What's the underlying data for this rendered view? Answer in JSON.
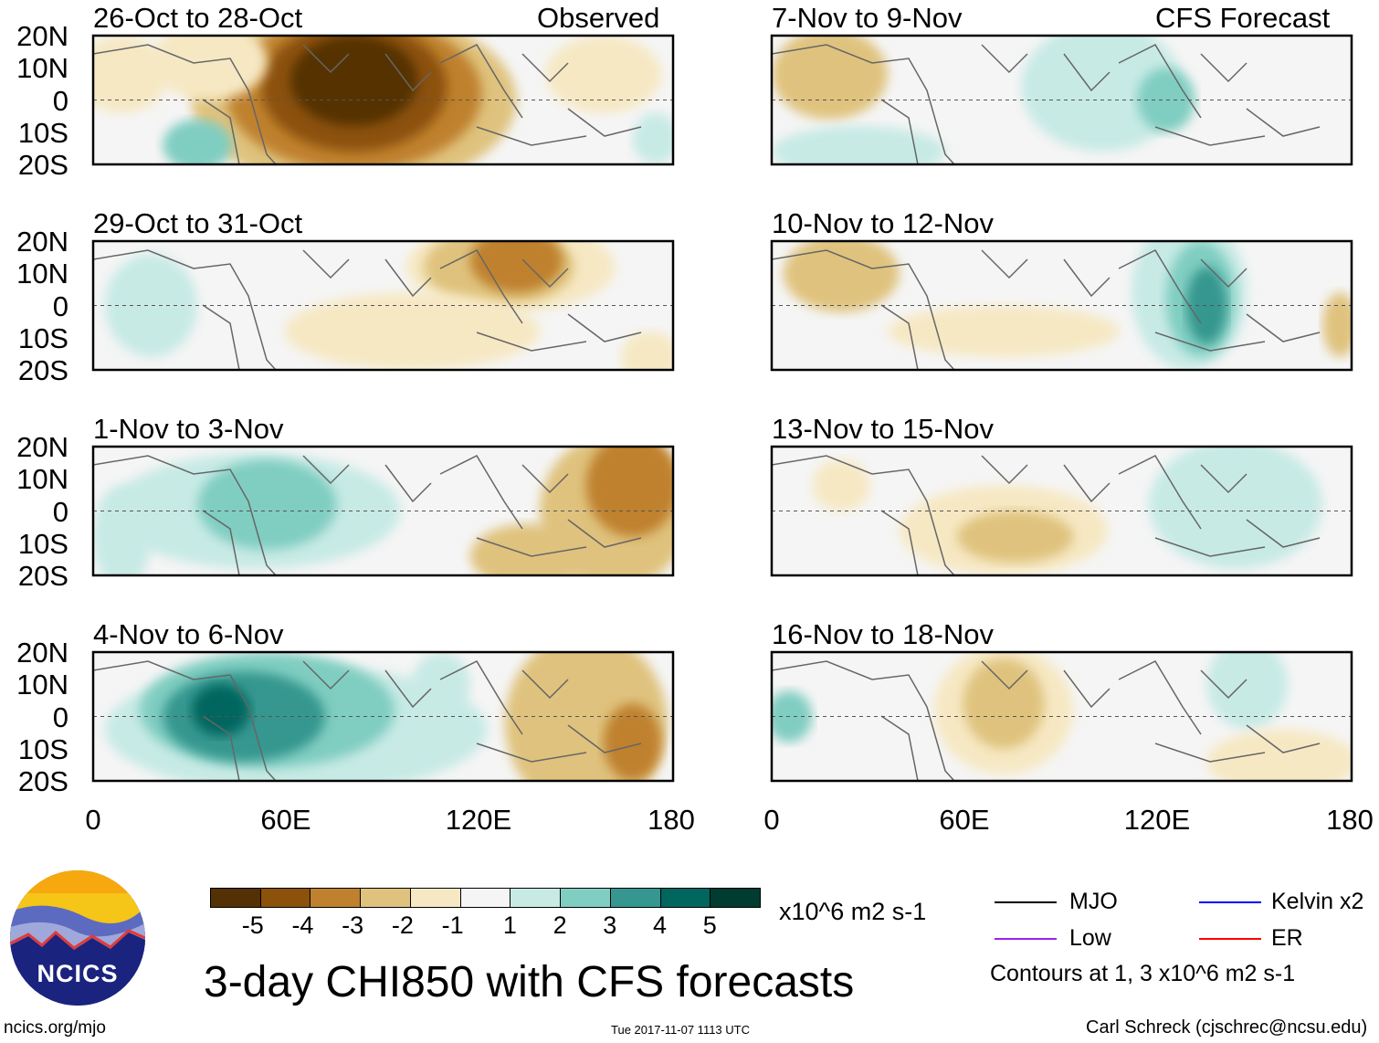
{
  "figure": {
    "title": "3-day CHI850 with CFS forecasts",
    "left_column_label": "Observed",
    "right_column_label": "CFS Forecast",
    "lat_labels": [
      "20N",
      "10N",
      "0",
      "10S",
      "20S"
    ],
    "lon_labels": [
      "0",
      "60E",
      "120E",
      "180"
    ],
    "panels": [
      {
        "period": "26-Oct to 28-Oct",
        "type": "Observed"
      },
      {
        "period": "29-Oct to 31-Oct",
        "type": "Observed"
      },
      {
        "period": "1-Nov to 3-Nov",
        "type": "Observed"
      },
      {
        "period": "4-Nov to 6-Nov",
        "type": "Observed"
      },
      {
        "period": "7-Nov to 9-Nov",
        "type": "CFS Forecast"
      },
      {
        "period": "10-Nov to 12-Nov",
        "type": "CFS Forecast"
      },
      {
        "period": "13-Nov to 15-Nov",
        "type": "CFS Forecast"
      },
      {
        "period": "16-Nov to 18-Nov",
        "type": "CFS Forecast"
      }
    ]
  },
  "colorbar": {
    "levels": [
      "-5",
      "-4",
      "-3",
      "-2",
      "-1",
      "1",
      "2",
      "3",
      "4",
      "5"
    ],
    "colors": [
      "#543005",
      "#8c510a",
      "#bf812d",
      "#dfc27d",
      "#f6e8c3",
      "#f5f5f5",
      "#c7eae5",
      "#80cdc1",
      "#35978f",
      "#01665e",
      "#003c30"
    ],
    "units": "x10^6 m2 s-1"
  },
  "legend": {
    "items": [
      {
        "label": "MJO",
        "color": "#000000"
      },
      {
        "label": "Kelvin x2",
        "color": "#0000ff"
      },
      {
        "label": "Low",
        "color": "#a020f0"
      },
      {
        "label": "ER",
        "color": "#ff0000"
      }
    ],
    "contour_note": "Contours at 1, 3 x10^6 m2 s-1"
  },
  "logo": {
    "text": "NCICS"
  },
  "footer": {
    "url": "ncics.org/mjo",
    "timestamp": "Tue 2017-11-07 1113 UTC",
    "credit": "Carl Schreck (cjschrec@ncsu.edu)"
  }
}
